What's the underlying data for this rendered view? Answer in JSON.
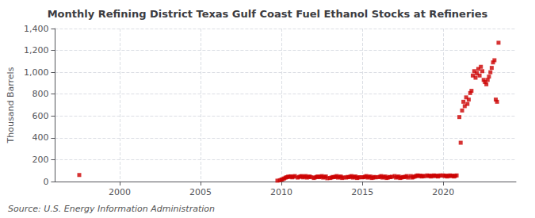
{
  "chart_data": {
    "type": "scatter",
    "title": "Monthly Refining District Texas Gulf Coast Fuel Ethanol Stocks at Refineries",
    "ylabel": "Thousand Barrels",
    "source": "Source: U.S. Energy Information Administration",
    "color": "#cc0000",
    "marker": "square",
    "grid": true,
    "xlim": [
      1996.0,
      2024.5
    ],
    "xticks": [
      2000,
      2005,
      2010,
      2015,
      2020
    ],
    "ylim": [
      0,
      1400
    ],
    "yticks": [
      0,
      200,
      400,
      600,
      800,
      {
        "value": 1000,
        "label": "1,000"
      },
      {
        "value": 1200,
        "label": "1,200"
      },
      {
        "value": 1400,
        "label": "1,400"
      }
    ],
    "x": [
      1997.5,
      2009.75,
      2009.9,
      2010.0,
      2010.08,
      2010.17,
      2010.25,
      2010.33,
      2010.42,
      2010.5,
      2010.58,
      2010.67,
      2010.75,
      2010.83,
      2011.0,
      2011.08,
      2011.17,
      2011.25,
      2011.33,
      2011.42,
      2011.5,
      2011.58,
      2011.67,
      2011.75,
      2011.83,
      2012.0,
      2012.08,
      2012.17,
      2012.25,
      2012.33,
      2012.42,
      2012.5,
      2012.58,
      2012.67,
      2012.75,
      2012.83,
      2013.0,
      2013.08,
      2013.17,
      2013.25,
      2013.33,
      2013.42,
      2013.5,
      2013.58,
      2013.67,
      2013.75,
      2013.83,
      2014.0,
      2014.08,
      2014.17,
      2014.25,
      2014.33,
      2014.42,
      2014.5,
      2014.58,
      2014.67,
      2014.75,
      2014.83,
      2015.0,
      2015.08,
      2015.17,
      2015.25,
      2015.33,
      2015.42,
      2015.5,
      2015.58,
      2015.67,
      2015.75,
      2015.83,
      2016.0,
      2016.08,
      2016.17,
      2016.25,
      2016.33,
      2016.42,
      2016.5,
      2016.58,
      2016.67,
      2016.75,
      2016.83,
      2017.0,
      2017.08,
      2017.17,
      2017.25,
      2017.33,
      2017.42,
      2017.5,
      2017.58,
      2017.67,
      2017.75,
      2017.83,
      2018.0,
      2018.08,
      2018.17,
      2018.25,
      2018.33,
      2018.42,
      2018.5,
      2018.58,
      2018.67,
      2018.75,
      2018.83,
      2019.0,
      2019.08,
      2019.17,
      2019.25,
      2019.33,
      2019.42,
      2019.5,
      2019.58,
      2019.67,
      2019.75,
      2019.83,
      2020.0,
      2020.08,
      2020.17,
      2020.25,
      2020.33,
      2020.42,
      2020.5,
      2020.58,
      2020.67,
      2020.75,
      2020.83,
      2021.0,
      2021.08,
      2021.17,
      2021.25,
      2021.33,
      2021.42,
      2021.5,
      2021.58,
      2021.67,
      2021.75,
      2021.83,
      2021.92,
      2022.0,
      2022.08,
      2022.17,
      2022.25,
      2022.33,
      2022.42,
      2022.5,
      2022.58,
      2022.67,
      2022.75,
      2022.83,
      2022.92,
      2023.0,
      2023.08,
      2023.17,
      2023.25,
      2023.33,
      2023.42
    ],
    "values": [
      60,
      8,
      12,
      18,
      22,
      28,
      35,
      40,
      45,
      42,
      48,
      38,
      44,
      50,
      36,
      42,
      46,
      50,
      38,
      44,
      50,
      36,
      42,
      46,
      40,
      32,
      38,
      42,
      46,
      40,
      44,
      50,
      36,
      42,
      46,
      30,
      32,
      36,
      42,
      40,
      44,
      50,
      36,
      42,
      46,
      32,
      38,
      36,
      42,
      40,
      44,
      50,
      36,
      42,
      46,
      32,
      36,
      40,
      38,
      40,
      44,
      50,
      36,
      42,
      46,
      32,
      36,
      42,
      38,
      40,
      44,
      50,
      36,
      42,
      46,
      32,
      36,
      42,
      40,
      44,
      50,
      36,
      42,
      46,
      32,
      36,
      42,
      40,
      44,
      50,
      36,
      50,
      36,
      42,
      46,
      52,
      56,
      50,
      54,
      46,
      52,
      48,
      56,
      50,
      54,
      46,
      52,
      56,
      50,
      54,
      46,
      52,
      56,
      56,
      50,
      54,
      46,
      52,
      56,
      50,
      54,
      46,
      52,
      56,
      590,
      355,
      650,
      730,
      690,
      770,
      710,
      750,
      810,
      830,
      970,
      1010,
      950,
      990,
      1030,
      970,
      1050,
      1010,
      930,
      910,
      890,
      930,
      960,
      1000,
      1040,
      1090,
      1110,
      750,
      730,
      1270
    ]
  }
}
